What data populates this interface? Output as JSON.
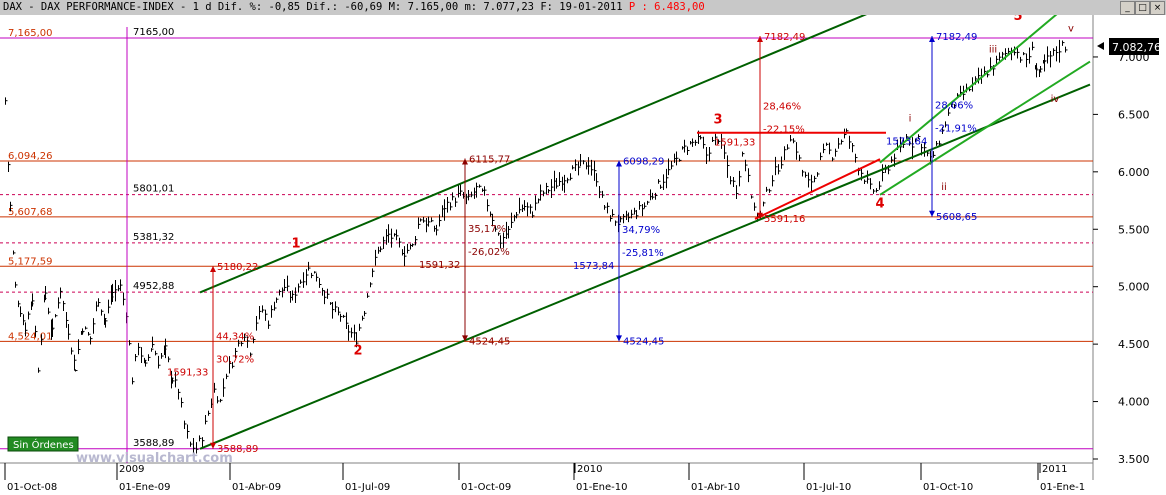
{
  "title": {
    "text": "DAX - DAX PERFORMANCE-INDEX -  1 d Dif. %: -0,85 Dif.: -60,69 M: 7.165,00 m: 7.077,23 F: 19-01-2011",
    "p_label": "P : 6.483,00"
  },
  "window_buttons": [
    "_",
    "□",
    "×"
  ],
  "status_badge": "Sin Órdenes",
  "watermark": "www.visualchart.com",
  "chart_data": {
    "type": "line",
    "style": "ohlc-bars",
    "instrument": "DAX - DAX PERFORMANCE-INDEX",
    "current_value_label": "7.082,76",
    "ylim": [
      3400,
      7450
    ],
    "y_ticks": [
      {
        "v": 3500,
        "label": "3.500"
      },
      {
        "v": 4000,
        "label": "4.000"
      },
      {
        "v": 4500,
        "label": "4.500"
      },
      {
        "v": 5000,
        "label": "5.000"
      },
      {
        "v": 5500,
        "label": "5.500"
      },
      {
        "v": 6000,
        "label": "6.000"
      },
      {
        "v": 6500,
        "label": "6.500"
      },
      {
        "v": 7000,
        "label": "7.000"
      }
    ],
    "x_ticks": [
      {
        "t": 5,
        "label": "01-Oct-08"
      },
      {
        "t": 117,
        "label": "01-Ene-09"
      },
      {
        "t": 230,
        "label": "01-Abr-09"
      },
      {
        "t": 343,
        "label": "01-Jul-09"
      },
      {
        "t": 459,
        "label": "01-Oct-09"
      },
      {
        "t": 574,
        "label": "01-Ene-10"
      },
      {
        "t": 689,
        "label": "01-Abr-10"
      },
      {
        "t": 804,
        "label": "01-Jul-10"
      },
      {
        "t": 921,
        "label": "01-Oct-10"
      },
      {
        "t": 1038,
        "label": "01-Ene-1"
      }
    ],
    "year_labels": [
      {
        "t": 117,
        "label": "2009"
      },
      {
        "t": 575,
        "label": "2010"
      },
      {
        "t": 1040,
        "label": "2011"
      }
    ],
    "price_path": [
      [
        5,
        6620
      ],
      [
        10,
        5700
      ],
      [
        15,
        5000
      ],
      [
        20,
        4800
      ],
      [
        25,
        4650
      ],
      [
        32,
        4900
      ],
      [
        38,
        4300
      ],
      [
        45,
        4950
      ],
      [
        52,
        4600
      ],
      [
        60,
        4980
      ],
      [
        68,
        4620
      ],
      [
        75,
        4300
      ],
      [
        82,
        4650
      ],
      [
        90,
        4550
      ],
      [
        98,
        4900
      ],
      [
        105,
        4700
      ],
      [
        112,
        4950
      ],
      [
        120,
        5000
      ],
      [
        126,
        4780
      ],
      [
        132,
        4200
      ],
      [
        138,
        4500
      ],
      [
        145,
        4300
      ],
      [
        152,
        4500
      ],
      [
        158,
        4350
      ],
      [
        165,
        4450
      ],
      [
        172,
        4200
      ],
      [
        178,
        4100
      ],
      [
        184,
        3800
      ],
      [
        190,
        3620
      ],
      [
        196,
        3589
      ],
      [
        202,
        3700
      ],
      [
        208,
        3900
      ],
      [
        214,
        4100
      ],
      [
        220,
        4000
      ],
      [
        226,
        4250
      ],
      [
        232,
        4350
      ],
      [
        238,
        4500
      ],
      [
        244,
        4600
      ],
      [
        250,
        4450
      ],
      [
        256,
        4700
      ],
      [
        262,
        4800
      ],
      [
        268,
        4700
      ],
      [
        276,
        4900
      ],
      [
        284,
        5000
      ],
      [
        292,
        4900
      ],
      [
        300,
        5050
      ],
      [
        308,
        5150
      ],
      [
        316,
        5100
      ],
      [
        324,
        4950
      ],
      [
        332,
        4800
      ],
      [
        340,
        4750
      ],
      [
        348,
        4620
      ],
      [
        356,
        4550
      ],
      [
        364,
        4800
      ],
      [
        372,
        5150
      ],
      [
        380,
        5350
      ],
      [
        388,
        5450
      ],
      [
        396,
        5400
      ],
      [
        404,
        5300
      ],
      [
        412,
        5350
      ],
      [
        420,
        5600
      ],
      [
        428,
        5550
      ],
      [
        436,
        5500
      ],
      [
        444,
        5700
      ],
      [
        452,
        5750
      ],
      [
        460,
        5800
      ],
      [
        468,
        5750
      ],
      [
        476,
        5850
      ],
      [
        484,
        5800
      ],
      [
        492,
        5600
      ],
      [
        500,
        5400
      ],
      [
        508,
        5480
      ],
      [
        516,
        5650
      ],
      [
        524,
        5700
      ],
      [
        532,
        5650
      ],
      [
        540,
        5800
      ],
      [
        548,
        5850
      ],
      [
        556,
        5900
      ],
      [
        564,
        5950
      ],
      [
        572,
        6000
      ],
      [
        580,
        6050
      ],
      [
        588,
        6080
      ],
      [
        596,
        5950
      ],
      [
        604,
        5700
      ],
      [
        612,
        5600
      ],
      [
        620,
        5550
      ],
      [
        628,
        5600
      ],
      [
        636,
        5650
      ],
      [
        644,
        5700
      ],
      [
        652,
        5800
      ],
      [
        660,
        5900
      ],
      [
        668,
        6000
      ],
      [
        676,
        6100
      ],
      [
        684,
        6200
      ],
      [
        692,
        6250
      ],
      [
        700,
        6270
      ],
      [
        706,
        6150
      ],
      [
        712,
        6250
      ],
      [
        718,
        6300
      ],
      [
        724,
        6150
      ],
      [
        730,
        5950
      ],
      [
        736,
        5850
      ],
      [
        742,
        6150
      ],
      [
        748,
        6000
      ],
      [
        754,
        5650
      ],
      [
        760,
        5620
      ],
      [
        766,
        5800
      ],
      [
        772,
        5950
      ],
      [
        778,
        6050
      ],
      [
        784,
        6150
      ],
      [
        790,
        6320
      ],
      [
        796,
        6200
      ],
      [
        802,
        6000
      ],
      [
        808,
        5900
      ],
      [
        814,
        5950
      ],
      [
        820,
        6100
      ],
      [
        826,
        6200
      ],
      [
        832,
        6150
      ],
      [
        838,
        6250
      ],
      [
        846,
        6330
      ],
      [
        852,
        6200
      ],
      [
        858,
        6050
      ],
      [
        864,
        5950
      ],
      [
        870,
        5850
      ],
      [
        876,
        5830
      ],
      [
        882,
        5950
      ],
      [
        888,
        6050
      ],
      [
        894,
        6150
      ],
      [
        900,
        6200
      ],
      [
        906,
        6300
      ],
      [
        912,
        6250
      ],
      [
        918,
        6300
      ],
      [
        924,
        6200
      ],
      [
        930,
        6100
      ],
      [
        936,
        6200
      ],
      [
        942,
        6350
      ],
      [
        948,
        6500
      ],
      [
        954,
        6600
      ],
      [
        960,
        6650
      ],
      [
        966,
        6700
      ],
      [
        972,
        6750
      ],
      [
        978,
        6800
      ],
      [
        984,
        6850
      ],
      [
        990,
        6900
      ],
      [
        996,
        6950
      ],
      [
        1002,
        7000
      ],
      [
        1008,
        7050
      ],
      [
        1014,
        7080
      ],
      [
        1020,
        7000
      ],
      [
        1026,
        6980
      ],
      [
        1032,
        7050
      ],
      [
        1036,
        6900
      ],
      [
        1040,
        6850
      ],
      [
        1044,
        6950
      ],
      [
        1050,
        7000
      ],
      [
        1056,
        7050
      ],
      [
        1062,
        7100
      ],
      [
        1068,
        7082
      ]
    ],
    "horizontal_levels": [
      {
        "v": 7165,
        "label": "7,165,00",
        "color": "#c000c0",
        "dash": false,
        "value_label": "7165,00"
      },
      {
        "v": 6094.26,
        "label": "6,094,26",
        "color": "#cc3300",
        "dash": false
      },
      {
        "v": 5801.01,
        "label": "",
        "color": "#cc0055",
        "dash": true,
        "value_label": "5801,01"
      },
      {
        "v": 5607.68,
        "label": "5,607,68",
        "color": "#cc3300",
        "dash": false
      },
      {
        "v": 5381.32,
        "label": "",
        "color": "#cc0055",
        "dash": true,
        "value_label": "5381,32"
      },
      {
        "v": 5177.59,
        "label": "5,177,59",
        "color": "#cc3300",
        "dash": false
      },
      {
        "v": 4952.88,
        "label": "",
        "color": "#cc0055",
        "dash": true,
        "value_label": "4952,88"
      },
      {
        "v": 4524.01,
        "label": "4,524,01",
        "color": "#cc3300",
        "dash": false
      },
      {
        "v": 3588.89,
        "label": "",
        "color": "#c000c0",
        "dash": false,
        "value_label": "3588,89"
      }
    ],
    "trend_lines": [
      {
        "from": [
          200,
          4950
        ],
        "to": [
          940,
          7640
        ],
        "color": "#006000",
        "width": 2
      },
      {
        "from": [
          200,
          3589
        ],
        "to": [
          1090,
          6760
        ],
        "color": "#006000",
        "width": 2
      },
      {
        "from": [
          880,
          6080
        ],
        "to": [
          1066,
          7440
        ],
        "color": "#22aa22",
        "width": 2
      },
      {
        "from": [
          880,
          5800
        ],
        "to": [
          1090,
          6960
        ],
        "color": "#22aa22",
        "width": 2
      },
      {
        "from": [
          697,
          6340
        ],
        "to": [
          886,
          6340
        ],
        "color": "#ee0000",
        "width": 2
      },
      {
        "from": [
          755,
          5590
        ],
        "to": [
          880,
          6110
        ],
        "color": "#ee0000",
        "width": 2
      }
    ],
    "measurements": [
      {
        "t": 213,
        "from": 3588.89,
        "to": 5180.22,
        "color": "#cc0000",
        "top_label": "5180,22",
        "bottom_label": "3588,89",
        "diff_label": "1591,33",
        "pct_label": "44,34%",
        "pct2_label": "30,72%"
      },
      {
        "t": 465,
        "from": 4524.45,
        "to": 6115.77,
        "color": "#8b0000",
        "top_label": "6115,77",
        "bottom_label": "4524,45",
        "diff_label": "1591,32",
        "pct_label": "35,17%",
        "pct2_label": "-26,02%"
      },
      {
        "t": 619,
        "from": 4524.45,
        "to": 6098.29,
        "color": "#0000cc",
        "top_label": "6098,29",
        "bottom_label": "4524,45",
        "diff_label": "1573,84",
        "pct_label": "34,79%",
        "pct2_label": "-25,81%"
      },
      {
        "t": 760,
        "from": 5591.16,
        "to": 7182.49,
        "color": "#cc0000",
        "top_label": "7182,49",
        "bottom_label": "5591,16",
        "diff_label": "1591,33",
        "pct_label": "28,46%",
        "pct2_label": "-22,15%"
      },
      {
        "t": 932,
        "from": 5608.65,
        "to": 7182.49,
        "color": "#0000cc",
        "top_label": "7182,49",
        "bottom_label": "5608,65",
        "diff_label": "1573,84",
        "pct_label": "28,06%",
        "pct2_label": "-21,91%"
      }
    ],
    "wave_labels": [
      {
        "text": "1",
        "t": 296,
        "v": 5340,
        "color": "#dd0000"
      },
      {
        "text": "2",
        "t": 358,
        "v": 4410,
        "color": "#dd0000"
      },
      {
        "text": "3",
        "t": 718,
        "v": 6420,
        "color": "#dd0000"
      },
      {
        "text": "4",
        "t": 880,
        "v": 5690,
        "color": "#dd0000"
      },
      {
        "text": "5",
        "t": 1018,
        "v": 7320,
        "color": "#dd0000"
      },
      {
        "text": "i",
        "t": 910,
        "v": 6440,
        "color": "#8b0000"
      },
      {
        "text": "ii",
        "t": 944,
        "v": 5840,
        "color": "#8b0000"
      },
      {
        "text": "iii",
        "t": 993,
        "v": 7040,
        "color": "#8b0000"
      },
      {
        "text": "iv",
        "t": 1055,
        "v": 6610,
        "color": "#8b0000"
      },
      {
        "text": "v",
        "t": 1071,
        "v": 7220,
        "color": "#8b0000"
      }
    ],
    "colors": {
      "bars": "#000000",
      "bg": "#ffffff",
      "axis_bg": "#ffffff",
      "price_box": "#000000"
    }
  }
}
